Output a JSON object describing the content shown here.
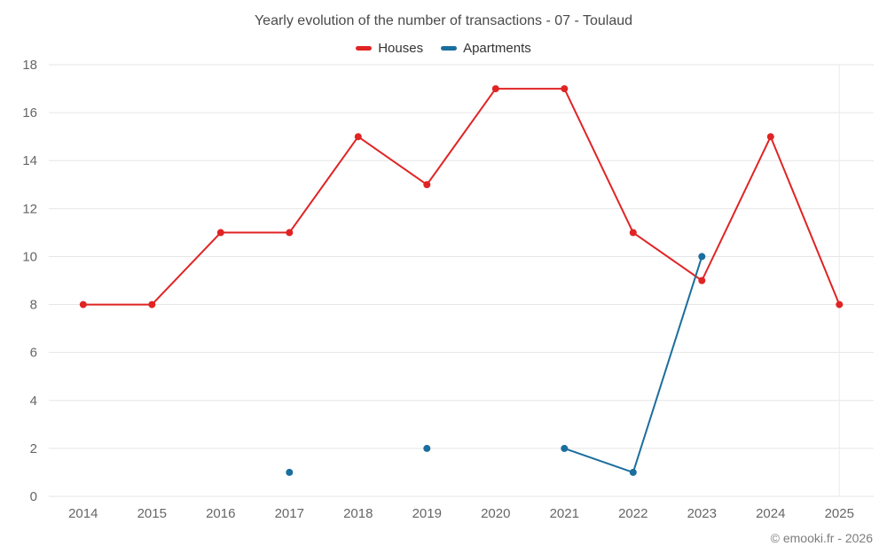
{
  "title": "Yearly evolution of the number of transactions - 07 - Toulaud",
  "legend": [
    {
      "label": "Houses",
      "color": "#e02424"
    },
    {
      "label": "Apartments",
      "color": "#1b6e9d"
    }
  ],
  "footer": "© emooki.fr - 2026",
  "chart_data": {
    "type": "line",
    "title": "Yearly evolution of the number of transactions - 07 - Toulaud",
    "categories": [
      "2014",
      "2015",
      "2016",
      "2017",
      "2018",
      "2019",
      "2020",
      "2021",
      "2022",
      "2023",
      "2024",
      "2025"
    ],
    "series": [
      {
        "name": "Houses",
        "color": "#e02424",
        "values": [
          8,
          8,
          11,
          11,
          15,
          13,
          17,
          17,
          11,
          9,
          15,
          8
        ]
      },
      {
        "name": "Apartments",
        "color": "#1b6e9d",
        "values": [
          null,
          null,
          null,
          1,
          null,
          2,
          null,
          2,
          1,
          10,
          null,
          null
        ]
      }
    ],
    "xlabel": "",
    "ylabel": "",
    "ylim": [
      0,
      18
    ],
    "ytick_step": 2,
    "grid": "horizontal",
    "grid_color": "#e6e6e6",
    "legend_position": "top"
  }
}
